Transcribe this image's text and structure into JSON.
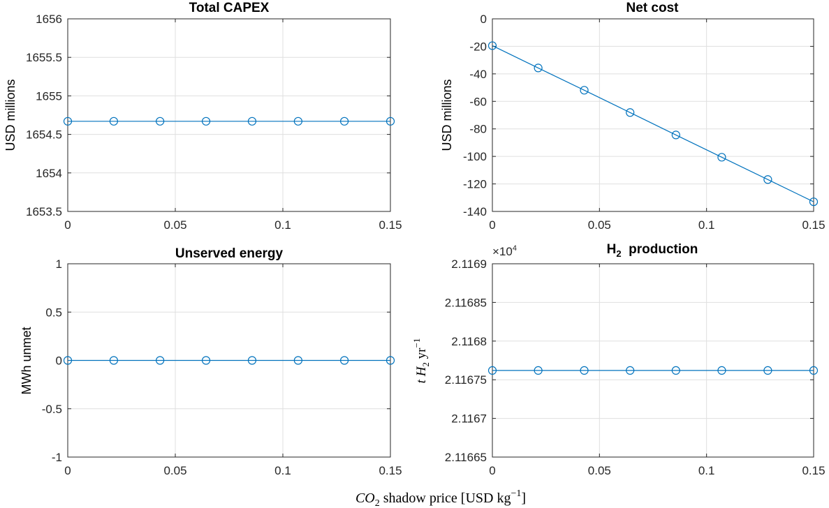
{
  "figure": {
    "xlabel_prefix": "CO",
    "xlabel_sub": "2",
    "xlabel_text": " shadow price [USD kg",
    "xlabel_sup": "−1",
    "xlabel_close": "]"
  },
  "chart_data": [
    {
      "type": "line",
      "title": "Total CAPEX",
      "ylabel": "USD millions",
      "xlim": [
        0,
        0.15
      ],
      "ylim": [
        1653.5,
        1656
      ],
      "grid": true,
      "xticks": [
        0,
        0.05,
        0.1,
        0.15
      ],
      "xtick_labels": [
        "0",
        "0.05",
        "0.1",
        "0.15"
      ],
      "yticks": [
        1653.5,
        1654,
        1654.5,
        1655,
        1655.5,
        1656
      ],
      "ytick_labels": [
        "1653.5",
        "1654",
        "1654.5",
        "1655",
        "1655.5",
        "1656"
      ],
      "color": "#0072BD",
      "x": [
        0,
        0.0214,
        0.0429,
        0.0643,
        0.0857,
        0.1071,
        0.1286,
        0.15
      ],
      "y": [
        1654.67,
        1654.67,
        1654.67,
        1654.67,
        1654.67,
        1654.67,
        1654.67,
        1654.67
      ]
    },
    {
      "type": "line",
      "title": "Net cost",
      "ylabel": "USD millions",
      "xlim": [
        0,
        0.15
      ],
      "ylim": [
        -140,
        0
      ],
      "grid": true,
      "xticks": [
        0,
        0.05,
        0.1,
        0.15
      ],
      "xtick_labels": [
        "0",
        "0.05",
        "0.1",
        "0.15"
      ],
      "yticks": [
        -140,
        -120,
        -100,
        -80,
        -60,
        -40,
        -20,
        0
      ],
      "ytick_labels": [
        "-140",
        "-120",
        "-100",
        "-80",
        "-60",
        "-40",
        "-20",
        "0"
      ],
      "color": "#0072BD",
      "x": [
        0,
        0.0214,
        0.0429,
        0.0643,
        0.0857,
        0.1071,
        0.1286,
        0.15
      ],
      "y": [
        -19.5,
        -35.7,
        -51.9,
        -68.1,
        -84.4,
        -100.6,
        -116.8,
        -133
      ]
    },
    {
      "type": "line",
      "title": "Unserved energy",
      "ylabel": "MWh unmet",
      "xlim": [
        0,
        0.15
      ],
      "ylim": [
        -1,
        1
      ],
      "grid": true,
      "xticks": [
        0,
        0.05,
        0.1,
        0.15
      ],
      "xtick_labels": [
        "0",
        "0.05",
        "0.1",
        "0.15"
      ],
      "yticks": [
        -1,
        -0.5,
        0,
        0.5,
        1
      ],
      "ytick_labels": [
        "-1",
        "-0.5",
        "0",
        "0.5",
        "1"
      ],
      "color": "#0072BD",
      "x": [
        0,
        0.0214,
        0.0429,
        0.0643,
        0.0857,
        0.1071,
        0.1286,
        0.15
      ],
      "y": [
        0,
        0,
        0,
        0,
        0,
        0,
        0,
        0
      ]
    },
    {
      "type": "line",
      "title_main": "H",
      "title_sub": "2",
      "title_rest": "  production",
      "ylabel_main": "t H",
      "ylabel_sub": "2",
      "ylabel_unit": " yr",
      "ylabel_sup": "−1",
      "exponent_base": "×10",
      "exponent_power": "4",
      "xlim": [
        0,
        0.15
      ],
      "ylim": [
        2.11665,
        2.1169
      ],
      "grid": true,
      "xticks": [
        0,
        0.05,
        0.1,
        0.15
      ],
      "xtick_labels": [
        "0",
        "0.05",
        "0.1",
        "0.15"
      ],
      "yticks": [
        2.11665,
        2.1167,
        2.11675,
        2.1168,
        2.11685,
        2.1169
      ],
      "ytick_labels": [
        "2.11665",
        "2.1167",
        "2.11675",
        "2.1168",
        "2.11685",
        "2.1169"
      ],
      "color": "#0072BD",
      "x": [
        0,
        0.0214,
        0.0429,
        0.0643,
        0.0857,
        0.1071,
        0.1286,
        0.15
      ],
      "y": [
        2.116762,
        2.116762,
        2.116762,
        2.116762,
        2.116762,
        2.116762,
        2.116762,
        2.116762
      ]
    }
  ]
}
